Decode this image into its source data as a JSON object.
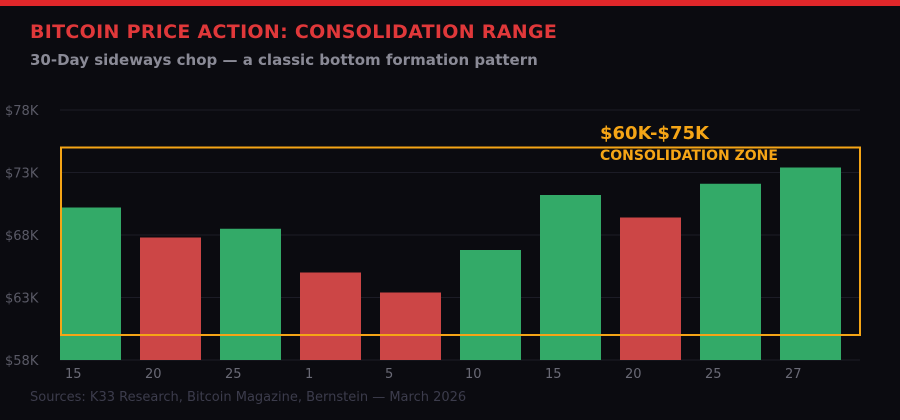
{
  "header": {
    "title": "BITCOIN PRICE ACTION: CONSOLIDATION RANGE",
    "subtitle": "30-Day sideways chop — a classic bottom formation pattern"
  },
  "footer": {
    "source": "Sources: K33 Research, Bitcoin Magazine, Bernstein — March 2026"
  },
  "colors": {
    "up": "#33aa68",
    "down": "#cc4646",
    "zone": "#f5a516",
    "title": "#e0383a",
    "accent_bar": "#e0272a"
  },
  "chart_data": {
    "type": "bar",
    "categories": [
      "15",
      "20",
      "25",
      "1",
      "5",
      "10",
      "15",
      "20",
      "25",
      "27"
    ],
    "values": [
      70.2,
      67.8,
      68.5,
      65.0,
      63.4,
      66.8,
      71.2,
      69.4,
      72.1,
      73.4
    ],
    "direction": [
      "up",
      "down",
      "up",
      "down",
      "down",
      "up",
      "up",
      "down",
      "up",
      "up"
    ],
    "unit": "$K",
    "ylim": [
      58,
      78
    ],
    "yticks": [
      58,
      63,
      68,
      73,
      78
    ],
    "ytick_labels": [
      "$58K",
      "$63K",
      "$68K",
      "$73K",
      "$78K"
    ],
    "grid": true,
    "zone": {
      "low": 60,
      "high": 75,
      "label": "$60K-$75K",
      "sublabel": "CONSOLIDATION ZONE"
    }
  }
}
